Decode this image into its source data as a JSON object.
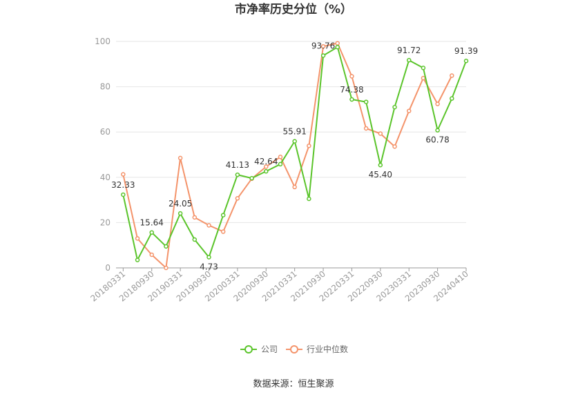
{
  "chart_data": {
    "type": "line",
    "title": "市净率历史分位（%）",
    "xlabel": "",
    "ylabel": "",
    "ylim": [
      0,
      100
    ],
    "yticks": [
      0,
      20,
      40,
      60,
      80,
      100
    ],
    "grid": true,
    "legend_position": "bottom",
    "x_tick_labels": [
      "20180331",
      "20180930",
      "20190331",
      "20190930",
      "20200331",
      "20200930",
      "20210331",
      "20210930",
      "20220331",
      "20220930",
      "20230331",
      "20230930",
      "20240410"
    ],
    "series": [
      {
        "name": "公司",
        "color": "#5ac42a",
        "values": [
          32.33,
          3.5,
          15.64,
          9.5,
          24.05,
          12.5,
          4.73,
          23.3,
          41.13,
          39.6,
          42.64,
          45.8,
          55.91,
          30.5,
          93.76,
          97.5,
          74.38,
          73.3,
          45.4,
          71.0,
          91.72,
          88.3,
          60.78,
          74.8,
          91.39
        ],
        "point_labels": {
          "0": "32.33",
          "2": "15.64",
          "4": "24.05",
          "6": "4.73",
          "8": "41.13",
          "10": "42.64",
          "12": "55.91",
          "14": "93.76",
          "16": "74.38",
          "18": "45.40",
          "20": "91.72",
          "22": "60.78",
          "24": "91.39"
        }
      },
      {
        "name": "行业中位数",
        "color": "#f4936a",
        "values": [
          41.3,
          13.0,
          5.8,
          0.0,
          48.5,
          22.3,
          18.8,
          16.0,
          30.7,
          39.4,
          44.7,
          49.0,
          35.7,
          53.9,
          97.8,
          99.2,
          84.6,
          61.6,
          59.3,
          53.6,
          69.3,
          83.8,
          72.4,
          84.9
        ]
      }
    ]
  },
  "source": "数据来源：恒生聚源"
}
